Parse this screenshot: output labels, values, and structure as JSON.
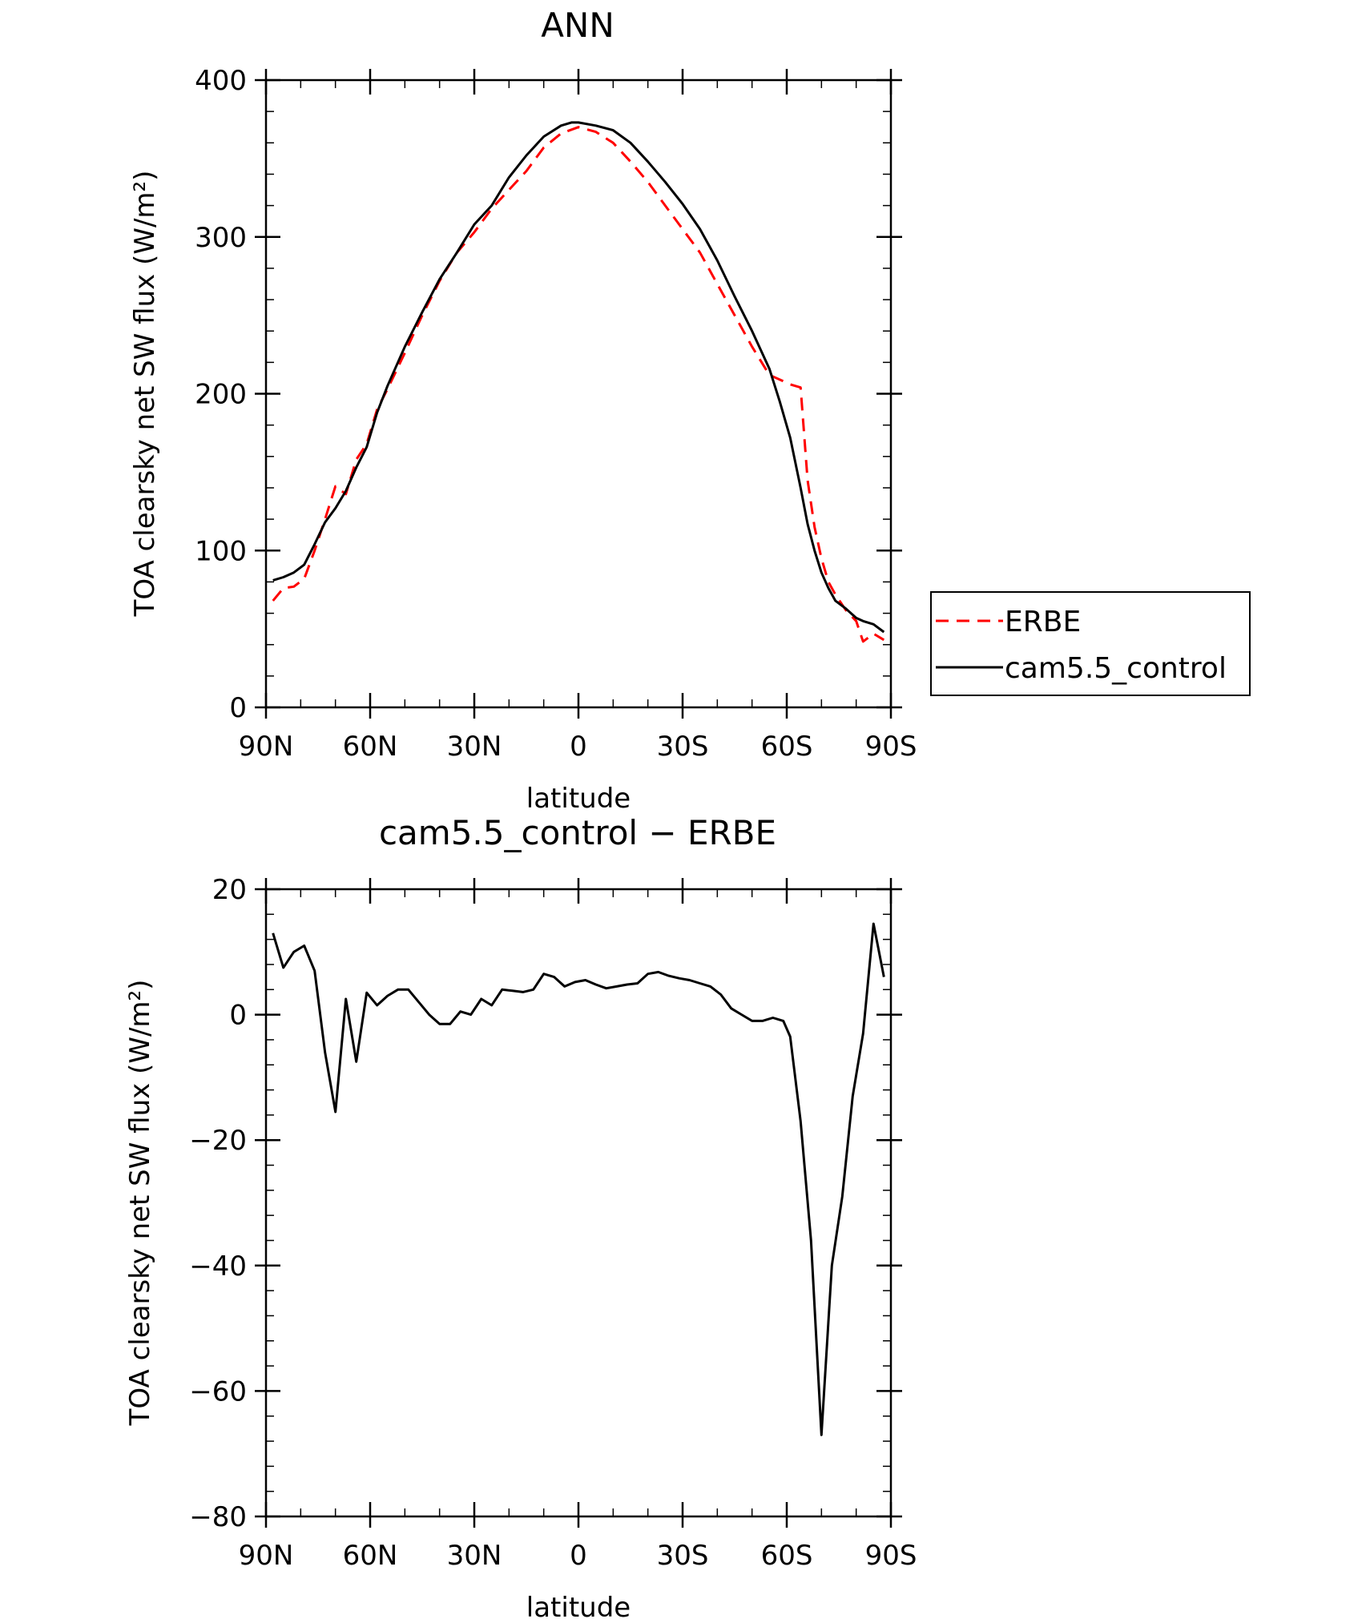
{
  "chart_data": [
    {
      "type": "line",
      "title": "ANN",
      "xlabel": "latitude",
      "ylabel": "TOA clearsky net SW flux (W/m²)",
      "xlim": [
        90,
        -90
      ],
      "ylim": [
        0,
        400
      ],
      "x_ticks": [
        90,
        60,
        30,
        0,
        -30,
        -60,
        -90
      ],
      "x_tick_labels": [
        "90N",
        "60N",
        "30N",
        "0",
        "30S",
        "60S",
        "90S"
      ],
      "y_ticks": [
        0,
        100,
        200,
        300,
        400
      ],
      "y_tick_labels": [
        "0",
        "100",
        "200",
        "300",
        "400"
      ],
      "legend": {
        "placement": "right",
        "entries": [
          "ERBE",
          "cam5.5_control"
        ]
      },
      "series": [
        {
          "name": "ERBE",
          "color": "#ff0000",
          "dash": "dashed",
          "x": [
            88,
            85,
            82,
            79,
            76,
            73,
            70,
            67,
            64,
            61,
            58,
            55,
            50,
            45,
            40,
            35,
            30,
            25,
            20,
            15,
            10,
            5,
            0,
            -5,
            -10,
            -15,
            -20,
            -25,
            -30,
            -35,
            -40,
            -45,
            -50,
            -55,
            -58,
            -61,
            -64,
            -66,
            -68,
            -70,
            -72,
            -74,
            -77,
            -80,
            -82,
            -85,
            -88
          ],
          "values": [
            68,
            76,
            77,
            82,
            100,
            120,
            141,
            136,
            158,
            168,
            190,
            203,
            226,
            250,
            272,
            290,
            303,
            318,
            330,
            342,
            357,
            366,
            370,
            367,
            360,
            348,
            335,
            320,
            305,
            290,
            270,
            250,
            230,
            212,
            209,
            206,
            204,
            145,
            115,
            95,
            80,
            72,
            62,
            55,
            42,
            47,
            43
          ]
        },
        {
          "name": "cam5.5_control",
          "color": "#000000",
          "dash": "solid",
          "x": [
            88,
            85,
            82,
            79,
            76,
            73,
            70,
            67,
            64,
            61,
            58,
            55,
            50,
            45,
            40,
            35,
            30,
            25,
            20,
            15,
            10,
            5,
            2,
            0,
            -5,
            -10,
            -15,
            -20,
            -25,
            -30,
            -35,
            -40,
            -45,
            -50,
            -55,
            -58,
            -61,
            -64,
            -66,
            -68,
            -70,
            -72,
            -74,
            -77,
            -80,
            -82,
            -85,
            -88
          ],
          "values": [
            81,
            83,
            86,
            91,
            104,
            118,
            127,
            138,
            153,
            166,
            188,
            205,
            230,
            252,
            273,
            290,
            308,
            320,
            338,
            352,
            364,
            371,
            373,
            373,
            371,
            368,
            360,
            348,
            335,
            321,
            305,
            285,
            262,
            240,
            216,
            195,
            172,
            140,
            117,
            100,
            86,
            76,
            68,
            63,
            57,
            55,
            53,
            48
          ]
        }
      ]
    },
    {
      "type": "line",
      "title": "cam5.5_control − ERBE",
      "xlabel": "latitude",
      "ylabel": "TOA clearsky net SW flux (W/m²)",
      "xlim": [
        90,
        -90
      ],
      "ylim": [
        -80,
        20
      ],
      "x_ticks": [
        90,
        60,
        30,
        0,
        -30,
        -60,
        -90
      ],
      "x_tick_labels": [
        "90N",
        "60N",
        "30N",
        "0",
        "30S",
        "60S",
        "90S"
      ],
      "y_ticks": [
        20,
        0,
        -20,
        -40,
        -60,
        -80
      ],
      "y_tick_labels": [
        "20",
        "0",
        "−20",
        "−40",
        "−60",
        "−80"
      ],
      "series": [
        {
          "color": "#000000",
          "dash": "solid",
          "x": [
            88,
            85,
            82,
            79,
            76,
            73,
            70,
            67,
            64,
            61,
            58,
            55,
            52,
            49,
            46,
            43,
            40,
            37,
            34,
            31,
            28,
            25,
            22,
            19,
            16,
            13,
            10,
            7,
            4,
            1,
            -2,
            -5,
            -8,
            -11,
            -14,
            -17,
            -20,
            -23,
            -26,
            -29,
            -32,
            -35,
            -38,
            -41,
            -44,
            -47,
            -50,
            -53,
            -56,
            -59,
            -61,
            -64,
            -67,
            -70,
            -73,
            -76,
            -79,
            -82,
            -85,
            -88
          ],
          "values": [
            13,
            7.5,
            10,
            11,
            7,
            -6,
            -15.5,
            2.5,
            -7.5,
            3.5,
            1.5,
            3,
            4,
            4,
            2,
            0,
            -1.5,
            -1.5,
            0.5,
            0,
            2.5,
            1.5,
            4,
            3.8,
            3.6,
            4,
            6.5,
            6,
            4.5,
            5.2,
            5.5,
            4.8,
            4.2,
            4.5,
            4.8,
            5,
            6.5,
            6.8,
            6.2,
            5.8,
            5.5,
            5,
            4.5,
            3.2,
            1,
            0,
            -1,
            -1,
            -0.5,
            -1,
            -3.5,
            -17,
            -36,
            -67,
            -40,
            -29,
            -13,
            -3,
            14.5,
            6
          ]
        }
      ]
    }
  ]
}
